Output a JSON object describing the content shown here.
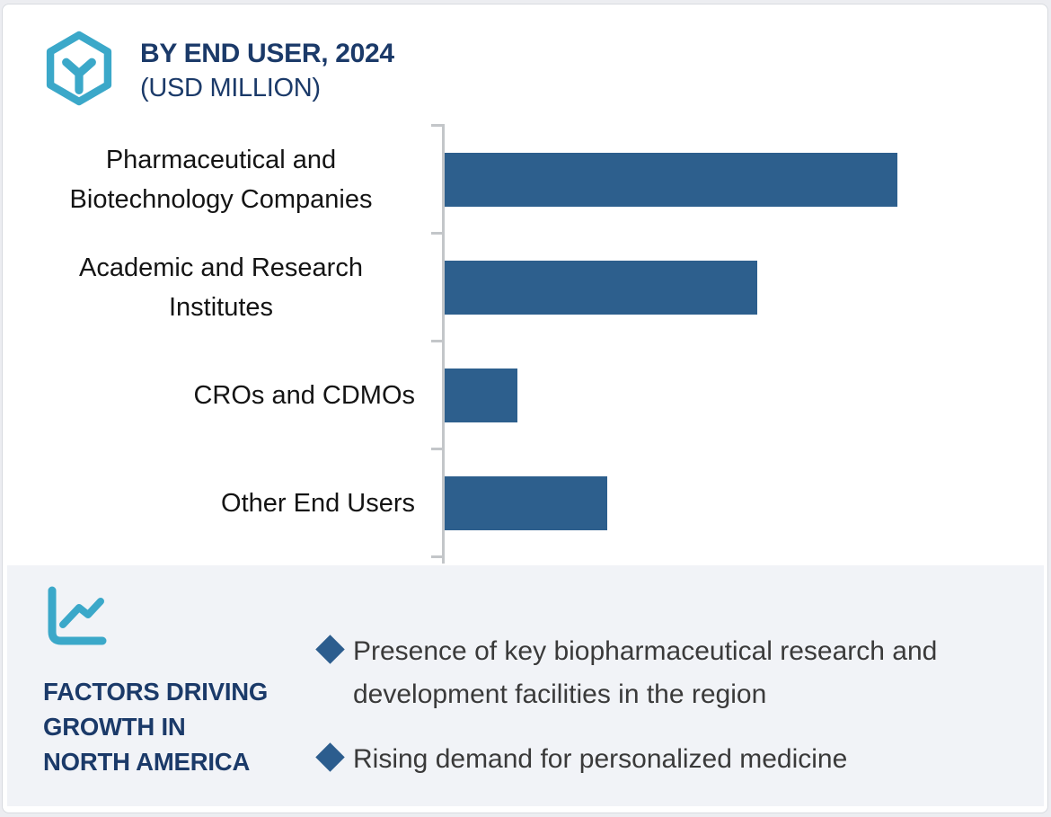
{
  "header": {
    "title_line1": "BY END USER, 2024",
    "title_line2": "(USD MILLION)"
  },
  "chart_data": {
    "type": "bar",
    "orientation": "horizontal",
    "title": "BY END USER, 2024 (USD MILLION)",
    "xlabel": "",
    "ylabel": "",
    "categories": [
      "Pharmaceutical and Biotechnology Companies",
      "Academic and Research Institutes",
      "CROs and CDMOs",
      "Other End Users"
    ],
    "values": [
      100,
      69,
      16,
      36
    ],
    "value_note": "relative bar lengths (largest = 100); numeric axis and data labels are not shown in the source image",
    "xlim": [
      0,
      135
    ],
    "grid": false,
    "legend": false,
    "bar_color": "#2d5f8d",
    "axis_color": "#c3c6c9"
  },
  "factors_panel": {
    "heading_lines": [
      "FACTORS DRIVING",
      "GROWTH IN",
      "NORTH AMERICA"
    ],
    "bullets": [
      "Presence of key biopharmaceutical research and development facilities in the region",
      "Rising demand for personalized medicine"
    ],
    "bullet_marker": "diamond",
    "panel_background": "#f1f3f7"
  },
  "icons": {
    "header_icon": "hexagon-molecule-icon",
    "panel_icon": "line-chart-icon"
  },
  "colors": {
    "navy": "#1b3a69",
    "teal": "#3ba8c9",
    "bar_blue": "#2d5f8d",
    "diamond_blue": "#2c5d8e",
    "body_text": "#3a3a3a",
    "label_text": "#141414"
  }
}
